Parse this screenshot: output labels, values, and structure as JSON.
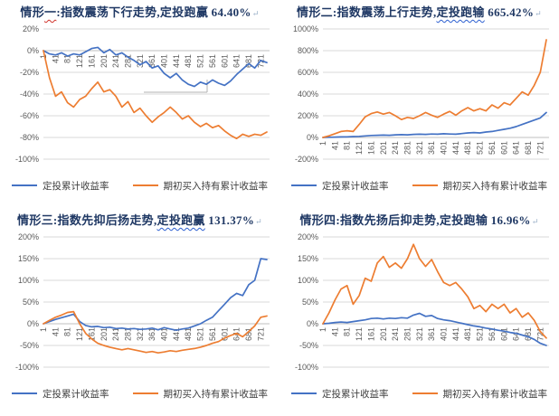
{
  "colors": {
    "dca_line": "#4472C4",
    "hold_line": "#ED7D31",
    "gridline": "#D9D9D9",
    "zero_axis": "#BFBFBF",
    "tick_label": "#595959",
    "title_text": "#1F3864"
  },
  "legend": {
    "dca_label": "定投累计收益率",
    "hold_label": "期初买入持有累计收益率"
  },
  "paragraph_mark": "↵",
  "chart_data": [
    {
      "type": "line",
      "title_parts": [
        {
          "text": "情形",
          "wavy": null
        },
        {
          "text": "一",
          "wavy": "red"
        },
        {
          "text": ":指数震荡下行走势,定投跑赢 64.40%",
          "wavy": null
        }
      ],
      "title_plain": "情形一:指数震荡下行走势,定投跑赢 64.40%",
      "ylim": [
        -100,
        20
      ],
      "yticks": [
        "20%",
        "0%",
        "-20%",
        "-40%",
        "-60%",
        "-80%",
        "-100%"
      ],
      "ytick_values": [
        20,
        0,
        -20,
        -40,
        -60,
        -80,
        -100
      ],
      "xlim": [
        1,
        750
      ],
      "xticks": [
        1,
        41,
        81,
        121,
        161,
        201,
        241,
        281,
        321,
        361,
        401,
        441,
        481,
        521,
        561,
        601,
        641,
        681,
        721
      ],
      "x_start": 1,
      "x_step": 20,
      "grid": true,
      "legend_position": "bottom",
      "artifact_box": true,
      "series": [
        {
          "name": "定投累计收益率",
          "color_key": "dca_line",
          "values": [
            0,
            -3,
            -4,
            -2,
            -5,
            -3,
            -4,
            -1,
            2,
            3,
            -2,
            1,
            -4,
            -2,
            -6,
            -9,
            -13,
            -10,
            -16,
            -14,
            -21,
            -25,
            -21,
            -27,
            -31,
            -33,
            -29,
            -31,
            -27,
            -30,
            -32,
            -28,
            -22,
            -17,
            -12,
            -16,
            -9,
            -11
          ]
        },
        {
          "name": "期初买入持有累计收益率",
          "color_key": "hold_line",
          "values": [
            0,
            -25,
            -42,
            -38,
            -48,
            -52,
            -45,
            -42,
            -35,
            -29,
            -38,
            -36,
            -42,
            -52,
            -47,
            -57,
            -53,
            -60,
            -66,
            -61,
            -57,
            -52,
            -57,
            -63,
            -60,
            -66,
            -70,
            -67,
            -71,
            -69,
            -74,
            -78,
            -81,
            -77,
            -79,
            -77,
            -78,
            -75
          ]
        }
      ]
    },
    {
      "type": "line",
      "title_parts": [
        {
          "text": "情形二:指数震荡上行走势,",
          "wavy": null
        },
        {
          "text": "定投跑输",
          "wavy": "blue"
        },
        {
          "text": " 665.42%",
          "wavy": null
        }
      ],
      "title_plain": "情形二:指数震荡上行走势,定投跑输 665.42%",
      "ylim": [
        -200,
        1000
      ],
      "yticks": [
        "1000%",
        "800%",
        "600%",
        "400%",
        "200%",
        "0%",
        "-200%"
      ],
      "ytick_values": [
        1000,
        800,
        600,
        400,
        200,
        0,
        -200
      ],
      "xlim": [
        1,
        750
      ],
      "xticks": [
        1,
        41,
        81,
        121,
        161,
        201,
        241,
        281,
        321,
        361,
        401,
        441,
        481,
        521,
        561,
        601,
        641,
        681,
        721
      ],
      "x_start": 1,
      "x_step": 20,
      "grid": true,
      "legend_position": "bottom",
      "artifact_box": false,
      "series": [
        {
          "name": "定投累计收益率",
          "color_key": "dca_line",
          "values": [
            0,
            2,
            3,
            5,
            6,
            8,
            10,
            14,
            18,
            20,
            22,
            20,
            24,
            26,
            24,
            28,
            30,
            28,
            32,
            30,
            34,
            32,
            30,
            36,
            42,
            45,
            42,
            50,
            55,
            65,
            75,
            85,
            100,
            120,
            140,
            160,
            180,
            230
          ]
        },
        {
          "name": "期初买入持有累计收益率",
          "color_key": "hold_line",
          "values": [
            0,
            15,
            35,
            55,
            62,
            55,
            120,
            190,
            220,
            235,
            215,
            230,
            200,
            165,
            185,
            175,
            200,
            230,
            205,
            185,
            215,
            240,
            205,
            245,
            275,
            245,
            265,
            245,
            300,
            270,
            320,
            300,
            360,
            420,
            390,
            480,
            600,
            900
          ]
        }
      ]
    },
    {
      "type": "line",
      "title_parts": [
        {
          "text": "情形三:指数先抑后扬走势,",
          "wavy": null
        },
        {
          "text": "定投跑赢",
          "wavy": "blue"
        },
        {
          "text": " 131.37%",
          "wavy": null
        }
      ],
      "title_plain": "情形三:指数先抑后扬走势,定投跑赢 131.37%",
      "ylim": [
        -100,
        200
      ],
      "yticks": [
        "200%",
        "150%",
        "100%",
        "50%",
        "0%",
        "-50%",
        "-100%"
      ],
      "ytick_values": [
        200,
        150,
        100,
        50,
        0,
        -50,
        -100
      ],
      "xlim": [
        1,
        750
      ],
      "xticks": [
        1,
        41,
        81,
        121,
        161,
        201,
        241,
        281,
        321,
        361,
        401,
        441,
        481,
        521,
        561,
        601,
        641,
        681,
        721
      ],
      "x_start": 1,
      "x_step": 20,
      "grid": true,
      "legend_position": "bottom",
      "artifact_box": false,
      "series": [
        {
          "name": "定投累计收益率",
          "color_key": "dca_line",
          "values": [
            0,
            5,
            10,
            14,
            18,
            22,
            5,
            -4,
            -7,
            -6,
            -9,
            -8,
            -11,
            -10,
            -12,
            -11,
            -13,
            -12,
            -10,
            -14,
            -9,
            -12,
            -15,
            -12,
            -10,
            -5,
            0,
            8,
            15,
            30,
            45,
            60,
            70,
            65,
            90,
            100,
            150,
            148
          ]
        },
        {
          "name": "期初买入持有累计收益率",
          "color_key": "hold_line",
          "values": [
            0,
            8,
            15,
            20,
            26,
            28,
            0,
            -22,
            -35,
            -45,
            -50,
            -54,
            -57,
            -60,
            -57,
            -60,
            -63,
            -66,
            -64,
            -67,
            -65,
            -62,
            -64,
            -61,
            -59,
            -57,
            -54,
            -50,
            -45,
            -41,
            -33,
            -27,
            -22,
            -30,
            -18,
            -5,
            15,
            18
          ]
        }
      ]
    },
    {
      "type": "line",
      "title_parts": [
        {
          "text": "情形四:指数先扬后抑走势,定投跑输 16.96%",
          "wavy": null
        }
      ],
      "title_plain": "情形四:指数先扬后抑走势,定投跑输 16.96%",
      "ylim": [
        -100,
        200
      ],
      "yticks": [
        "200%",
        "150%",
        "100%",
        "50%",
        "0%",
        "-50%",
        "-100%"
      ],
      "ytick_values": [
        200,
        150,
        100,
        50,
        0,
        -50,
        -100
      ],
      "xlim": [
        1,
        750
      ],
      "xticks": [
        1,
        41,
        81,
        121,
        161,
        201,
        241,
        281,
        321,
        361,
        401,
        441,
        481,
        521,
        561,
        601,
        641,
        681,
        721
      ],
      "x_start": 1,
      "x_step": 20,
      "grid": true,
      "legend_position": "bottom",
      "artifact_box": false,
      "series": [
        {
          "name": "定投累计收益率",
          "color_key": "dca_line",
          "values": [
            0,
            1,
            3,
            4,
            3,
            5,
            7,
            9,
            12,
            13,
            11,
            13,
            12,
            14,
            13,
            20,
            24,
            17,
            19,
            12,
            9,
            7,
            4,
            1,
            -2,
            -5,
            -7,
            -10,
            -12,
            -15,
            -17,
            -20,
            -22,
            -26,
            -30,
            -36,
            -45,
            -50
          ]
        },
        {
          "name": "期初买入持有累计收益率",
          "color_key": "hold_line",
          "values": [
            0,
            25,
            55,
            80,
            88,
            45,
            65,
            105,
            98,
            140,
            155,
            130,
            140,
            128,
            150,
            183,
            150,
            132,
            148,
            120,
            95,
            88,
            95,
            80,
            62,
            35,
            42,
            28,
            45,
            35,
            45,
            25,
            35,
            15,
            25,
            8,
            -18,
            -33
          ]
        }
      ]
    }
  ]
}
